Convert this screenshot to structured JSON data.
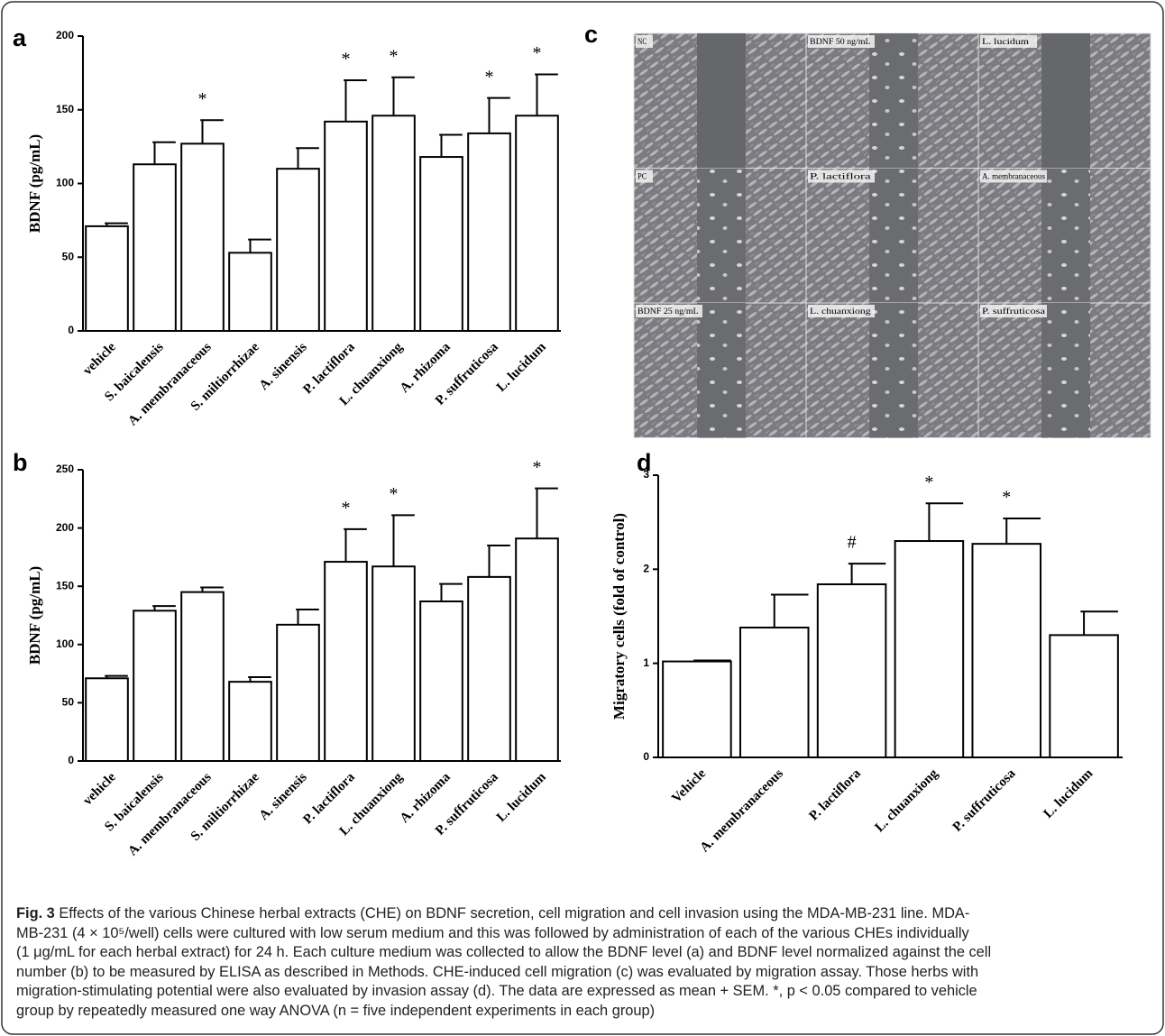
{
  "chart_data": [
    {
      "type": "bar",
      "panel_label": "a",
      "y_label": "BDNF (pg/mL)",
      "categories": [
        "vehicle",
        "S. baicalensis",
        "A. membranaceous",
        "S. miltiorrhizae",
        "A. sinensis",
        "P. lactiflora",
        "L. chuanxiong",
        "A. rhizoma",
        "P. suffruticosa",
        "L. lucidum"
      ],
      "values": [
        71,
        113,
        127,
        53,
        110,
        142,
        146,
        118,
        134,
        146
      ],
      "errors": [
        2,
        15,
        16,
        9,
        14,
        28,
        26,
        15,
        24,
        28
      ],
      "annotations": [
        null,
        null,
        "*",
        null,
        null,
        "*",
        "*",
        null,
        "*",
        "*"
      ],
      "ylim": [
        0,
        200
      ],
      "yticks": [
        0,
        50,
        100,
        150,
        200
      ],
      "color": "#ffffff"
    },
    {
      "type": "bar",
      "panel_label": "b",
      "y_label": "BDNF (pg/mL)",
      "categories": [
        "vehicle",
        "S. baicalensis",
        "A. membranaceous",
        "S. miltiorrhizae",
        "A. sinensis",
        "P. lactiflora",
        "L. chuanxiong",
        "A. rhizoma",
        "P. suffruticosa",
        "L. lucidum"
      ],
      "values": [
        71,
        129,
        145,
        68,
        117,
        171,
        167,
        137,
        158,
        191
      ],
      "errors": [
        2,
        4,
        4,
        4,
        13,
        28,
        44,
        15,
        27,
        43
      ],
      "annotations": [
        null,
        null,
        null,
        null,
        null,
        "*",
        "*",
        null,
        null,
        "*"
      ],
      "ylim": [
        0,
        250
      ],
      "yticks": [
        0,
        50,
        100,
        150,
        200,
        250
      ],
      "color": "#ffffff"
    },
    {
      "type": "bar",
      "panel_label": "d",
      "y_label": "Migratory cells (fold of control)",
      "categories": [
        "Vehicle",
        "A. membranaceous",
        "P. lactiflora",
        "L. chuanxiong",
        "P. suffruticosa",
        "L. lucidum"
      ],
      "values": [
        1.02,
        1.38,
        1.84,
        2.3,
        2.27,
        1.3
      ],
      "errors": [
        0.01,
        0.35,
        0.22,
        0.4,
        0.27,
        0.25
      ],
      "annotations": [
        null,
        null,
        "#",
        "*",
        "*",
        null
      ],
      "ylim": [
        0,
        3
      ],
      "yticks": [
        0,
        1,
        2,
        3
      ],
      "color": "#ffffff"
    }
  ],
  "panel_c": {
    "panel_label": "c",
    "labels": [
      "NC",
      "BDNF 50 ng/mL",
      "L. lucidum",
      "PC",
      "P. lactiflora",
      "A. membranaceous",
      "BDNF 25 ng/mL",
      "L. chuanxiong",
      "P. suffruticosa"
    ]
  },
  "caption": {
    "label": "Fig. 3",
    "lines": [
      " Effects of the various Chinese herbal extracts (CHE) on BDNF secretion, cell migration and cell invasion using the MDA-MB-231 line. MDA-",
      "MB-231 (4 × 10⁵/well) cells were cultured with low serum medium and this was followed by administration of each of the various CHEs individually",
      "(1 μg/mL for each herbal extract) for 24 h. Each culture medium was collected to allow the BDNF level (a) and BDNF level normalized against the cell",
      "number (b) to be measured by ELISA as described in Methods. CHE-induced cell migration (c) was evaluated by migration assay. Those herbs with",
      "migration-stimulating potential were also evaluated by invasion assay (d). The data are expressed as mean + SEM. *, p < 0.05 compared to vehicle",
      "group by repeatedly measured one way ANOVA (n = five independent experiments in each group)"
    ]
  }
}
